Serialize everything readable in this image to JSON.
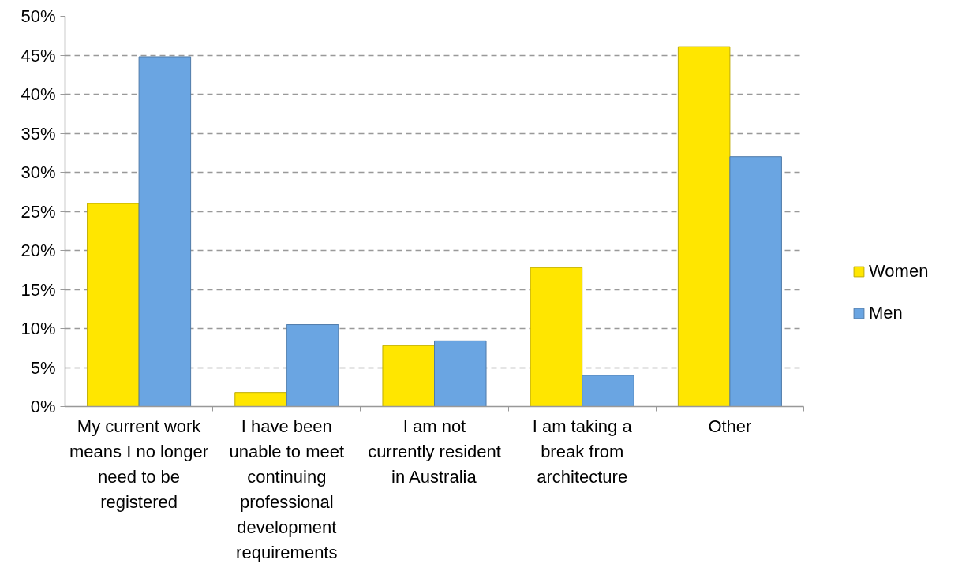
{
  "chart_data": {
    "type": "bar",
    "categories": [
      "My current work\nmeans I no longer\nneed to be\nregistered",
      "I have been\nunable to meet\ncontinuing\nprofessional\ndevelopment\nrequirements",
      "I am not\ncurrently resident\nin Australia",
      "I am taking a\nbreak from\narchitecture",
      "Other"
    ],
    "series": [
      {
        "name": "Women",
        "color": "#ffe600",
        "values": [
          26,
          1.8,
          7.8,
          17.8,
          46.1
        ]
      },
      {
        "name": "Men",
        "color": "#6aa5e2",
        "values": [
          44.8,
          10.5,
          8.4,
          4.0,
          32
        ]
      }
    ],
    "ylim": [
      0,
      50
    ],
    "yticks": [
      {
        "value": 0,
        "label": "0%"
      },
      {
        "value": 5,
        "label": "5%"
      },
      {
        "value": 10,
        "label": "10%"
      },
      {
        "value": 15,
        "label": "15%"
      },
      {
        "value": 20,
        "label": "20%"
      },
      {
        "value": 25,
        "label": "25%"
      },
      {
        "value": 30,
        "label": "30%"
      },
      {
        "value": 35,
        "label": "35%"
      },
      {
        "value": 40,
        "label": "40%"
      },
      {
        "value": 45,
        "label": "45%"
      },
      {
        "value": 50,
        "label": "50%"
      }
    ],
    "grid": "y",
    "legend": "right"
  }
}
